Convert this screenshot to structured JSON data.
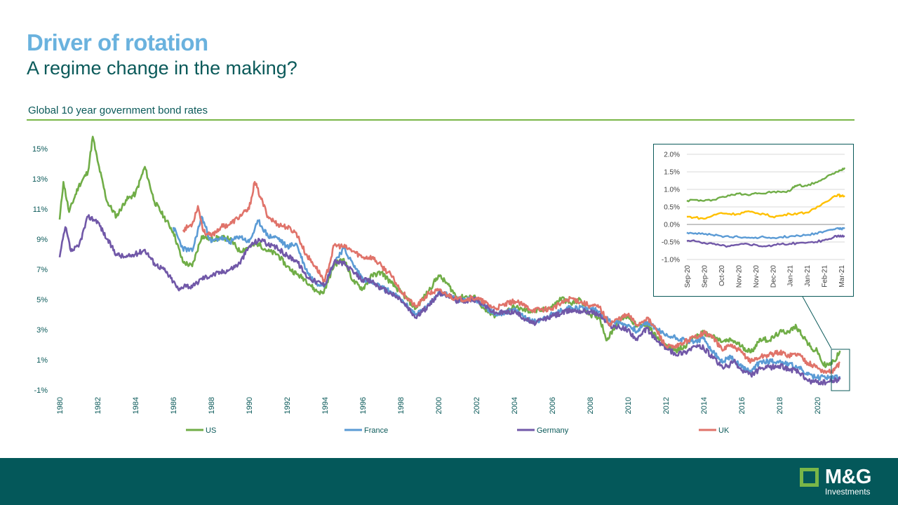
{
  "page": {
    "title": "Driver of rotation",
    "subtitle": "A regime change in the making?",
    "chart_label": "Global 10 year government bond rates"
  },
  "logo": {
    "name": "M&G",
    "sub": "Investments"
  },
  "colors": {
    "US": "#70ad47",
    "France": "#5b9bd5",
    "Germany": "#7158a8",
    "UK": "#e0736a",
    "inset_yellow": "#ffc000",
    "brand_dark": "#04585a",
    "title_blue": "#6ab2de",
    "accent_green": "#7ab648"
  },
  "chart_data": [
    {
      "type": "line",
      "xlim": [
        1980,
        2021.3
      ],
      "ylim": [
        -1,
        16
      ],
      "y_ticks": [
        -1,
        1,
        3,
        5,
        7,
        9,
        11,
        13,
        15
      ],
      "y_tick_labels": [
        "-1%",
        "1%",
        "3%",
        "5%",
        "7%",
        "9%",
        "11%",
        "13%",
        "15%"
      ],
      "x_ticks": [
        1980,
        1982,
        1984,
        1986,
        1988,
        1990,
        1992,
        1994,
        1996,
        1998,
        2000,
        2002,
        2004,
        2006,
        2008,
        2010,
        2012,
        2014,
        2016,
        2018,
        2020
      ],
      "grid": false,
      "legend_position": "bottom",
      "series": [
        {
          "name": "US",
          "color": "#70ad47",
          "x": [
            1980,
            1980.2,
            1980.5,
            1981,
            1981.5,
            1981.75,
            1982,
            1982.5,
            1983,
            1983.5,
            1984,
            1984.5,
            1985,
            1985.5,
            1986,
            1986.5,
            1987,
            1987.5,
            1988,
            1988.5,
            1989,
            1989.5,
            1990,
            1990.5,
            1991,
            1991.5,
            1992,
            1992.5,
            1993,
            1993.5,
            1993.9,
            1994.5,
            1995,
            1995.5,
            1996,
            1996.5,
            1997,
            1997.5,
            1998,
            1998.8,
            1999.5,
            2000,
            2000.5,
            2001,
            2001.5,
            2002,
            2002.5,
            2003,
            2003.5,
            2004,
            2004.5,
            2005,
            2005.5,
            2006,
            2006.5,
            2007,
            2007.5,
            2008,
            2008.5,
            2008.9,
            2009.5,
            2010,
            2010.5,
            2011,
            2011.5,
            2012,
            2012.5,
            2013,
            2013.5,
            2014,
            2014.5,
            2015,
            2015.5,
            2016,
            2016.5,
            2017,
            2017.5,
            2018,
            2018.5,
            2018.9,
            2019.3,
            2019.7,
            2020,
            2020.3,
            2020.6,
            2020.9,
            2021.2
          ],
          "values": [
            10.3,
            12.8,
            10.8,
            12.5,
            13.5,
            15.8,
            14.2,
            11.5,
            10.5,
            11.6,
            12,
            13.8,
            11.5,
            10.5,
            9.5,
            7.5,
            7.2,
            9.2,
            9,
            9.1,
            9,
            8.2,
            8.5,
            8.7,
            8.2,
            8,
            7.2,
            6.7,
            6.3,
            5.6,
            5.4,
            7.3,
            7.7,
            6.2,
            5.7,
            6.6,
            6.8,
            6.1,
            5.5,
            4.4,
            5.6,
            6.6,
            6,
            5.1,
            5.2,
            5.1,
            4.2,
            3.9,
            4.2,
            4.5,
            4.3,
            4.2,
            4.3,
            4.5,
            5.1,
            4.7,
            5,
            4,
            3.8,
            2.3,
            3.6,
            3.9,
            3.2,
            3.4,
            2.5,
            2,
            1.6,
            1.9,
            2.5,
            2.8,
            2.5,
            2.2,
            2.3,
            1.9,
            1.5,
            2.4,
            2.3,
            2.8,
            2.9,
            3.2,
            2.5,
            1.7,
            1.6,
            0.7,
            0.65,
            0.9,
            1.6
          ]
        },
        {
          "name": "France",
          "color": "#5b9bd5",
          "x": [
            1986,
            1986.5,
            1987,
            1987.5,
            1988,
            1988.5,
            1989,
            1989.5,
            1990,
            1990.5,
            1991,
            1991.5,
            1992,
            1992.5,
            1993,
            1993.5,
            1994,
            1994.5,
            1995,
            1995.5,
            1996,
            1996.5,
            1997,
            1997.5,
            1998,
            1998.8,
            1999.5,
            2000,
            2000.5,
            2001,
            2002,
            2003,
            2004,
            2005,
            2006,
            2007,
            2008,
            2008.5,
            2009,
            2010,
            2010.5,
            2011,
            2011.5,
            2012,
            2012.5,
            2013,
            2013.5,
            2014,
            2014.5,
            2015,
            2015.3,
            2015.6,
            2016,
            2016.5,
            2017,
            2018,
            2018.5,
            2019,
            2019.5,
            2020,
            2020.3,
            2020.6,
            2021.2
          ],
          "values": [
            9.8,
            8.4,
            8.2,
            10.5,
            8.8,
            9.1,
            8.8,
            9.2,
            8.8,
            10.2,
            9.2,
            9.1,
            8.5,
            8.7,
            7,
            6.1,
            6,
            7.5,
            8.4,
            7.3,
            6.4,
            6.1,
            5.8,
            5.5,
            5,
            4,
            4.6,
            5.5,
            5.3,
            5,
            5,
            4,
            4.3,
            3.5,
            4,
            4.5,
            4.4,
            4.2,
            3.6,
            3.3,
            2.9,
            3.5,
            3.1,
            2.6,
            2.5,
            2.3,
            2.2,
            2.4,
            1.5,
            0.8,
            1.2,
            1,
            0.5,
            0.2,
            0.9,
            0.9,
            0.7,
            0.5,
            0,
            -0.2,
            -0.1,
            -0.2,
            -0.1
          ]
        },
        {
          "name": "Germany",
          "color": "#7158a8",
          "x": [
            1980,
            1980.3,
            1980.6,
            1981,
            1981.5,
            1982,
            1982.5,
            1983,
            1983.5,
            1984,
            1984.5,
            1985,
            1985.5,
            1986,
            1986.3,
            1986.6,
            1987,
            1987.5,
            1988,
            1988.5,
            1989,
            1989.5,
            1990,
            1990.3,
            1990.7,
            1991,
            1991.5,
            1992,
            1992.5,
            1993,
            1993.5,
            1994,
            1994.5,
            1995,
            1995.5,
            1996,
            1996.5,
            1997,
            1997.5,
            1998,
            1998.8,
            1999.5,
            2000,
            2000.5,
            2001,
            2002,
            2003,
            2004,
            2005,
            2006,
            2007,
            2008,
            2008.5,
            2009,
            2010,
            2010.5,
            2011,
            2011.5,
            2012,
            2012.5,
            2013,
            2013.5,
            2014,
            2014.5,
            2015,
            2015.3,
            2015.6,
            2016,
            2016.5,
            2017,
            2018,
            2018.5,
            2019,
            2019.5,
            2020,
            2020.5,
            2021.2
          ],
          "values": [
            7.8,
            9.8,
            8.2,
            8.5,
            10.5,
            10.2,
            9,
            8,
            7.8,
            8,
            8.3,
            7.4,
            7,
            6.2,
            5.6,
            6,
            5.8,
            6.4,
            6.6,
            6.8,
            7,
            7.4,
            8.5,
            8.8,
            9,
            8.6,
            8.4,
            7.9,
            7.6,
            6.6,
            6.2,
            6,
            7.5,
            7.4,
            6.8,
            6.3,
            6.2,
            5.7,
            5.4,
            5,
            3.8,
            4.6,
            5.4,
            5.3,
            4.9,
            5,
            4.1,
            4.2,
            3.4,
            3.9,
            4.3,
            4.2,
            4,
            3.3,
            3,
            2.3,
            3.1,
            2.3,
            1.8,
            1.4,
            1.5,
            1.9,
            1.8,
            1.1,
            0.5,
            0.6,
            0.9,
            0.3,
            0,
            0.4,
            0.6,
            0.4,
            0.2,
            -0.4,
            -0.5,
            -0.5,
            -0.3
          ]
        },
        {
          "name": "UK",
          "color": "#e0736a",
          "x": [
            1986.5,
            1987,
            1987.3,
            1987.6,
            1988,
            1988.5,
            1989,
            1989.5,
            1990,
            1990.3,
            1990.6,
            1991,
            1991.5,
            1992,
            1992.5,
            1993,
            1993.5,
            1994,
            1994.5,
            1995,
            1995.5,
            1996,
            1996.5,
            1997,
            1997.5,
            1998,
            1998.8,
            1999.5,
            2000,
            2000.5,
            2001,
            2002,
            2003,
            2004,
            2005,
            2006,
            2007,
            2008,
            2008.5,
            2009,
            2010,
            2010.5,
            2011,
            2011.5,
            2012,
            2012.5,
            2013,
            2013.5,
            2014,
            2014.5,
            2015,
            2015.3,
            2015.6,
            2016,
            2016.5,
            2017,
            2018,
            2018.5,
            2019,
            2019.5,
            2020,
            2020.3,
            2020.6,
            2020.9,
            2021.2
          ],
          "values": [
            9.6,
            10,
            11.2,
            9.5,
            9.2,
            9.8,
            10,
            10.5,
            11,
            12.8,
            11.8,
            10.5,
            10,
            9.8,
            9.4,
            8,
            7.2,
            6.2,
            8.6,
            8.5,
            8.2,
            7.8,
            7.8,
            7.2,
            6.6,
            5.6,
            4.5,
            5.4,
            5.6,
            5.3,
            5,
            5.1,
            4.4,
            4.9,
            4.3,
            4.4,
            5.1,
            4.6,
            4.5,
            3.4,
            4,
            3.3,
            3.8,
            3,
            1.9,
            1.8,
            2.2,
            2.5,
            2.8,
            2.5,
            1.6,
            2,
            1.8,
            1.5,
            0.9,
            1.2,
            1.5,
            1.3,
            1.4,
            0.8,
            0.5,
            0.25,
            0.2,
            0.3,
            0.8
          ]
        }
      ]
    },
    {
      "type": "line",
      "ylim": [
        -1.0,
        2.0
      ],
      "y_ticks": [
        -1.0,
        -0.5,
        0.0,
        0.5,
        1.0,
        1.5,
        2.0
      ],
      "y_tick_labels": [
        "-1.0%",
        "-0.5%",
        "0.0%",
        "0.5%",
        "1.0%",
        "1.5%",
        "2.0%"
      ],
      "categories": [
        "Sep-20",
        "Sep-20",
        "Oct-20",
        "Nov-20",
        "Nov-20",
        "Dec-20",
        "Jan-21",
        "Jan-21",
        "Feb-21",
        "Mar-21"
      ],
      "grid": "horizontal",
      "series": [
        {
          "color": "#70ad47",
          "x": [
            0,
            0.5,
            1,
            1.5,
            2,
            2.5,
            3,
            3.5,
            4,
            4.5,
            5,
            5.5,
            6,
            6.3,
            6.5,
            7,
            7.5,
            8,
            8.5,
            8.8,
            9,
            9.2
          ],
          "values": [
            0.68,
            0.7,
            0.67,
            0.7,
            0.78,
            0.82,
            0.88,
            0.85,
            0.9,
            0.88,
            0.93,
            0.92,
            0.95,
            1.1,
            1.12,
            1.1,
            1.2,
            1.3,
            1.45,
            1.5,
            1.55,
            1.62
          ]
        },
        {
          "color": "#ffc000",
          "x": [
            0,
            0.5,
            1,
            1.5,
            2,
            2.5,
            3,
            3.5,
            4,
            4.5,
            5,
            5.5,
            6,
            6.5,
            7,
            7.5,
            8,
            8.5,
            8.8,
            9,
            9.2
          ],
          "values": [
            0.22,
            0.2,
            0.16,
            0.25,
            0.33,
            0.3,
            0.3,
            0.37,
            0.32,
            0.3,
            0.22,
            0.25,
            0.3,
            0.32,
            0.34,
            0.45,
            0.62,
            0.78,
            0.85,
            0.8,
            0.82
          ]
        },
        {
          "color": "#5b9bd5",
          "x": [
            0,
            0.5,
            1,
            1.5,
            2,
            2.5,
            3,
            3.5,
            4,
            4.5,
            5,
            5.5,
            6,
            6.5,
            7,
            7.5,
            8,
            8.5,
            8.8,
            9,
            9.2
          ],
          "values": [
            -0.23,
            -0.25,
            -0.28,
            -0.3,
            -0.33,
            -0.36,
            -0.36,
            -0.38,
            -0.37,
            -0.36,
            -0.38,
            -0.36,
            -0.34,
            -0.32,
            -0.3,
            -0.25,
            -0.2,
            -0.15,
            -0.1,
            -0.13,
            -0.12
          ]
        },
        {
          "color": "#7158a8",
          "x": [
            0,
            0.5,
            1,
            1.5,
            2,
            2.5,
            3,
            3.5,
            4,
            4.5,
            5,
            5.5,
            6,
            6.5,
            7,
            7.5,
            8,
            8.5,
            8.8,
            9,
            9.2
          ],
          "values": [
            -0.47,
            -0.48,
            -0.52,
            -0.55,
            -0.6,
            -0.62,
            -0.58,
            -0.55,
            -0.58,
            -0.62,
            -0.6,
            -0.56,
            -0.55,
            -0.53,
            -0.52,
            -0.5,
            -0.45,
            -0.38,
            -0.32,
            -0.35,
            -0.33
          ]
        }
      ]
    }
  ]
}
